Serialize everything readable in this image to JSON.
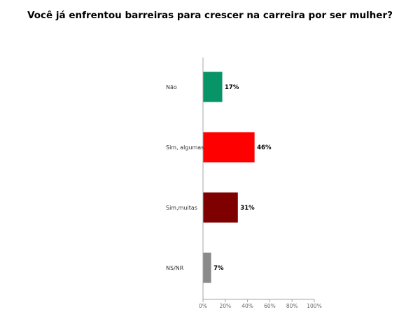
{
  "chart_data": {
    "type": "bar",
    "orientation": "horizontal",
    "title": "Você já enfrentou barreiras para crescer na carreira por ser mulher?",
    "categories": [
      "Não",
      "Sim, algumas",
      "Sim,muitas",
      "NS/NR"
    ],
    "values": [
      17,
      46,
      31,
      7
    ],
    "value_labels": [
      "17%",
      "46%",
      "31%",
      "7%"
    ],
    "colors": [
      "#079467",
      "#ff0000",
      "#7f0000",
      "#8a8a8a"
    ],
    "xlim": [
      0,
      100
    ],
    "x_ticks": [
      0,
      20,
      40,
      60,
      80,
      100
    ],
    "x_tick_labels": [
      "0%",
      "20%",
      "40%",
      "60%",
      "80%",
      "100%"
    ],
    "xlabel": "",
    "ylabel": "",
    "grid": false,
    "legend": "none"
  }
}
